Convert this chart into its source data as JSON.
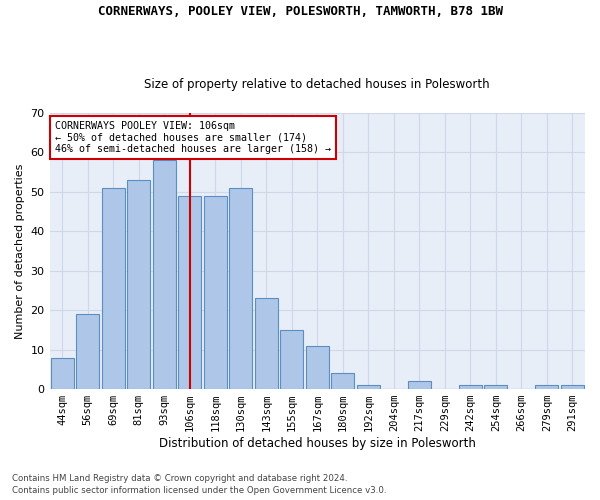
{
  "title": "CORNERWAYS, POOLEY VIEW, POLESWORTH, TAMWORTH, B78 1BW",
  "subtitle": "Size of property relative to detached houses in Polesworth",
  "xlabel": "Distribution of detached houses by size in Polesworth",
  "ylabel": "Number of detached properties",
  "categories": [
    "44sqm",
    "56sqm",
    "69sqm",
    "81sqm",
    "93sqm",
    "106sqm",
    "118sqm",
    "130sqm",
    "143sqm",
    "155sqm",
    "167sqm",
    "180sqm",
    "192sqm",
    "204sqm",
    "217sqm",
    "229sqm",
    "242sqm",
    "254sqm",
    "266sqm",
    "279sqm",
    "291sqm"
  ],
  "values": [
    8,
    19,
    51,
    53,
    58,
    49,
    49,
    51,
    23,
    15,
    11,
    4,
    1,
    0,
    2,
    0,
    1,
    1,
    0,
    1,
    1
  ],
  "bar_color": "#aec6e8",
  "bar_edge_color": "#5a8fc2",
  "highlight_index": 5,
  "highlight_line_color": "#cc0000",
  "annotation_text": "CORNERWAYS POOLEY VIEW: 106sqm\n← 50% of detached houses are smaller (174)\n46% of semi-detached houses are larger (158) →",
  "annotation_box_color": "#ffffff",
  "annotation_box_edge_color": "#cc0000",
  "ylim": [
    0,
    70
  ],
  "yticks": [
    0,
    10,
    20,
    30,
    40,
    50,
    60,
    70
  ],
  "grid_color": "#d0d8e8",
  "background_color": "#e8eef8",
  "footer_line1": "Contains HM Land Registry data © Crown copyright and database right 2024.",
  "footer_line2": "Contains public sector information licensed under the Open Government Licence v3.0."
}
